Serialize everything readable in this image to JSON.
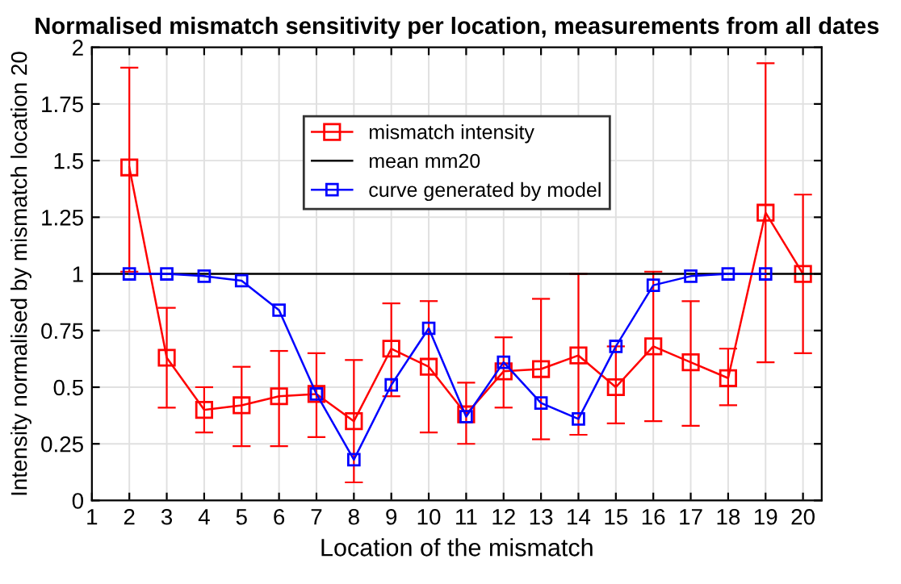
{
  "chart_data": {
    "type": "line",
    "title": "Normalised mismatch sensitivity per location, measurements from all dates",
    "xlabel": "Location of the mismatch",
    "ylabel": "Intensity normalised by mismatch location 20",
    "xlim": [
      1,
      20.5
    ],
    "xticks": [
      1,
      2,
      3,
      4,
      5,
      6,
      7,
      8,
      9,
      10,
      11,
      12,
      13,
      14,
      15,
      16,
      17,
      18,
      19,
      20
    ],
    "ylim": [
      0,
      2
    ],
    "yticks": [
      0,
      0.25,
      0.5,
      0.75,
      1,
      1.25,
      1.5,
      1.75,
      2
    ],
    "grid": true,
    "legend": "top",
    "series": [
      {
        "name": "mismatch intensity",
        "color": "#ff0000",
        "marker": "square",
        "x": [
          2,
          3,
          4,
          5,
          6,
          7,
          8,
          9,
          10,
          11,
          12,
          13,
          14,
          15,
          16,
          17,
          18,
          19,
          20
        ],
        "values": [
          1.47,
          0.63,
          0.4,
          0.42,
          0.46,
          0.47,
          0.35,
          0.67,
          0.59,
          0.38,
          0.57,
          0.58,
          0.64,
          0.5,
          0.68,
          0.61,
          0.54,
          1.27,
          1.0
        ],
        "errors": [
          [
            1.01,
            1.91
          ],
          [
            0.41,
            0.85
          ],
          [
            0.3,
            0.5
          ],
          [
            0.24,
            0.59
          ],
          [
            0.24,
            0.66
          ],
          [
            0.28,
            0.65
          ],
          [
            0.08,
            0.62
          ],
          [
            0.46,
            0.87
          ],
          [
            0.3,
            0.88
          ],
          [
            0.25,
            0.52
          ],
          [
            0.41,
            0.72
          ],
          [
            0.27,
            0.89
          ],
          [
            0.29,
            1.0
          ],
          [
            0.34,
            0.68
          ],
          [
            0.35,
            1.01
          ],
          [
            0.33,
            0.88
          ],
          [
            0.42,
            0.67
          ],
          [
            0.61,
            1.93
          ],
          [
            0.65,
            1.35
          ]
        ]
      },
      {
        "name": "mean mm20",
        "color": "#000000",
        "marker": "none",
        "x": [
          1,
          20.5
        ],
        "values": [
          1,
          1
        ]
      },
      {
        "name": "curve generated by model",
        "color": "#0000ff",
        "marker": "square",
        "x": [
          2,
          3,
          4,
          5,
          6,
          7,
          8,
          9,
          10,
          11,
          12,
          13,
          14,
          15,
          16,
          17,
          18,
          19
        ],
        "values": [
          1.0,
          1.0,
          0.99,
          0.97,
          0.84,
          0.47,
          0.18,
          0.51,
          0.76,
          0.37,
          0.61,
          0.43,
          0.36,
          0.68,
          0.95,
          0.99,
          1.0,
          1.0
        ]
      }
    ]
  }
}
